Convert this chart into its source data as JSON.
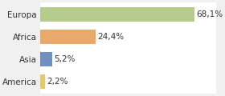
{
  "categories": [
    "Europa",
    "Africa",
    "Asia",
    "America"
  ],
  "values": [
    68.1,
    24.4,
    5.2,
    2.2
  ],
  "labels": [
    "68,1%",
    "24,4%",
    "5,2%",
    "2,2%"
  ],
  "bar_colors": [
    "#b5cc8e",
    "#e8a96a",
    "#7090c0",
    "#e8c96a"
  ],
  "background_color": "#ffffff",
  "fig_facecolor": "#f0f0f0",
  "plot_area_color": "#ffffff",
  "grid_color": "#d8d8d8",
  "xlim": [
    0,
    78
  ],
  "label_fontsize": 7.5,
  "category_fontsize": 7.5,
  "bar_height": 0.65
}
